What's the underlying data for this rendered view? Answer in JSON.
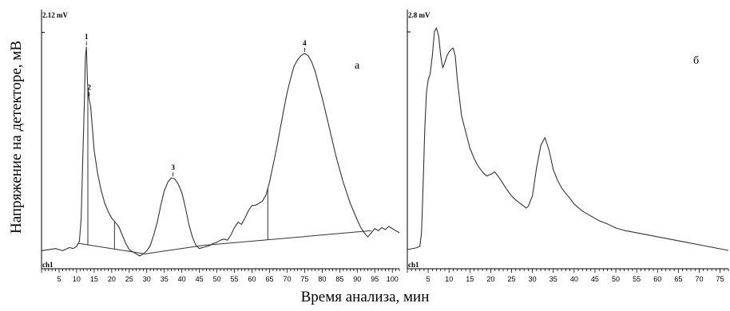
{
  "ylabel": "Напряжение на детекторе, мВ",
  "xlabel": "Время анализа, мин",
  "chart_data": [
    {
      "type": "line",
      "panel_letter": "а",
      "max_label": "2.12 mV",
      "channel_label": "ch1",
      "xlim": [
        0,
        102
      ],
      "ylim": [
        0,
        2.2
      ],
      "ymax_tick": 2.12,
      "xticks": [
        5,
        10,
        15,
        20,
        25,
        30,
        35,
        40,
        45,
        50,
        55,
        60,
        65,
        70,
        75,
        80,
        85,
        90,
        95,
        100
      ],
      "series": [
        {
          "x": [
            0,
            2,
            4,
            6,
            8,
            9,
            10,
            10.8,
            11.3,
            11.7,
            12.2,
            12.5,
            12.8,
            13.1,
            13.5,
            14,
            15,
            16,
            17,
            18,
            19,
            20,
            21,
            22,
            23,
            24,
            25,
            26,
            27,
            28,
            29,
            30,
            31,
            32,
            33,
            34,
            35,
            36,
            37,
            38,
            39,
            40,
            41,
            42,
            43,
            44,
            45,
            46,
            47,
            48,
            49,
            50,
            51,
            52,
            53,
            54,
            55,
            56,
            57,
            58,
            59,
            60,
            61,
            62,
            63,
            64,
            65,
            66,
            67,
            68,
            69,
            70,
            71,
            72,
            73,
            74,
            75,
            76,
            77,
            78,
            79,
            80,
            81,
            82,
            83,
            84,
            85,
            86,
            87,
            88,
            89,
            90,
            91,
            92,
            93,
            94,
            95,
            96,
            97,
            98,
            99,
            100,
            101,
            102
          ],
          "y": [
            0.05,
            0.06,
            0.07,
            0.05,
            0.08,
            0.07,
            0.09,
            0.14,
            0.35,
            0.85,
            1.45,
            1.88,
            1.98,
            1.65,
            1.5,
            1.42,
            1.0,
            0.78,
            0.62,
            0.5,
            0.42,
            0.36,
            0.32,
            0.28,
            0.2,
            0.12,
            0.06,
            0.04,
            0.02,
            0.0,
            0.02,
            0.05,
            0.1,
            0.2,
            0.32,
            0.48,
            0.62,
            0.7,
            0.74,
            0.73,
            0.68,
            0.6,
            0.46,
            0.3,
            0.18,
            0.1,
            0.07,
            0.08,
            0.09,
            0.1,
            0.12,
            0.13,
            0.15,
            0.16,
            0.15,
            0.2,
            0.27,
            0.32,
            0.3,
            0.36,
            0.43,
            0.48,
            0.48,
            0.5,
            0.52,
            0.58,
            0.7,
            0.86,
            1.02,
            1.2,
            1.38,
            1.55,
            1.68,
            1.8,
            1.86,
            1.9,
            1.92,
            1.9,
            1.84,
            1.75,
            1.62,
            1.5,
            1.36,
            1.22,
            1.08,
            0.94,
            0.82,
            0.7,
            0.6,
            0.5,
            0.42,
            0.34,
            0.27,
            0.22,
            0.18,
            0.22,
            0.26,
            0.24,
            0.27,
            0.25,
            0.28,
            0.26,
            0.24,
            0.22
          ]
        }
      ],
      "baseline": {
        "x": [
          10.5,
          29.5,
          46,
          94
        ],
        "y": [
          0.12,
          0.02,
          0.1,
          0.24
        ]
      },
      "drop_lines_x": [
        13.2,
        20.8,
        64.5
      ],
      "peaks": [
        {
          "label": "1",
          "x": 12.8,
          "y": 1.98
        },
        {
          "label": "2",
          "x": 13.6,
          "y": 1.5
        },
        {
          "label": "3",
          "x": 37.5,
          "y": 0.74
        },
        {
          "label": "4",
          "x": 75,
          "y": 1.92
        }
      ]
    },
    {
      "type": "line",
      "panel_letter": "б",
      "max_label": "2.8 mV",
      "channel_label": "ch1",
      "xlim": [
        0,
        77
      ],
      "ylim": [
        0,
        2.9
      ],
      "ymax_tick": 2.8,
      "xticks": [
        5,
        10,
        15,
        20,
        25,
        30,
        35,
        40,
        45,
        50,
        55,
        60,
        65,
        70,
        75
      ],
      "series": [
        {
          "x": [
            0,
            2,
            3,
            3.4,
            3.8,
            4.2,
            4.6,
            5,
            5.5,
            6,
            6.5,
            7,
            7.5,
            8,
            8.5,
            9,
            9.5,
            10,
            10.5,
            11,
            11.5,
            12,
            13,
            14,
            15,
            16,
            17,
            18,
            19,
            20,
            21,
            22,
            23,
            24,
            25,
            26,
            27,
            28,
            28.5,
            29,
            30,
            31,
            32,
            33,
            34,
            35,
            36,
            37,
            38,
            39,
            40,
            42,
            44,
            46,
            48,
            50,
            52,
            54,
            56,
            58,
            60,
            62,
            64,
            66,
            68,
            70,
            72,
            74,
            76,
            77
          ],
          "y": [
            0.08,
            0.1,
            0.12,
            0.3,
            0.9,
            1.6,
            2.05,
            2.2,
            2.28,
            2.5,
            2.8,
            2.85,
            2.75,
            2.5,
            2.35,
            2.42,
            2.5,
            2.55,
            2.58,
            2.6,
            2.5,
            2.2,
            1.75,
            1.55,
            1.35,
            1.22,
            1.12,
            1.05,
            1.0,
            1.02,
            1.05,
            0.98,
            0.9,
            0.82,
            0.75,
            0.7,
            0.66,
            0.62,
            0.6,
            0.62,
            0.75,
            1.1,
            1.38,
            1.48,
            1.32,
            1.08,
            0.95,
            0.85,
            0.78,
            0.72,
            0.65,
            0.56,
            0.5,
            0.44,
            0.4,
            0.35,
            0.32,
            0.3,
            0.28,
            0.26,
            0.24,
            0.22,
            0.2,
            0.18,
            0.16,
            0.14,
            0.12,
            0.1,
            0.08,
            0.07
          ]
        }
      ]
    }
  ]
}
